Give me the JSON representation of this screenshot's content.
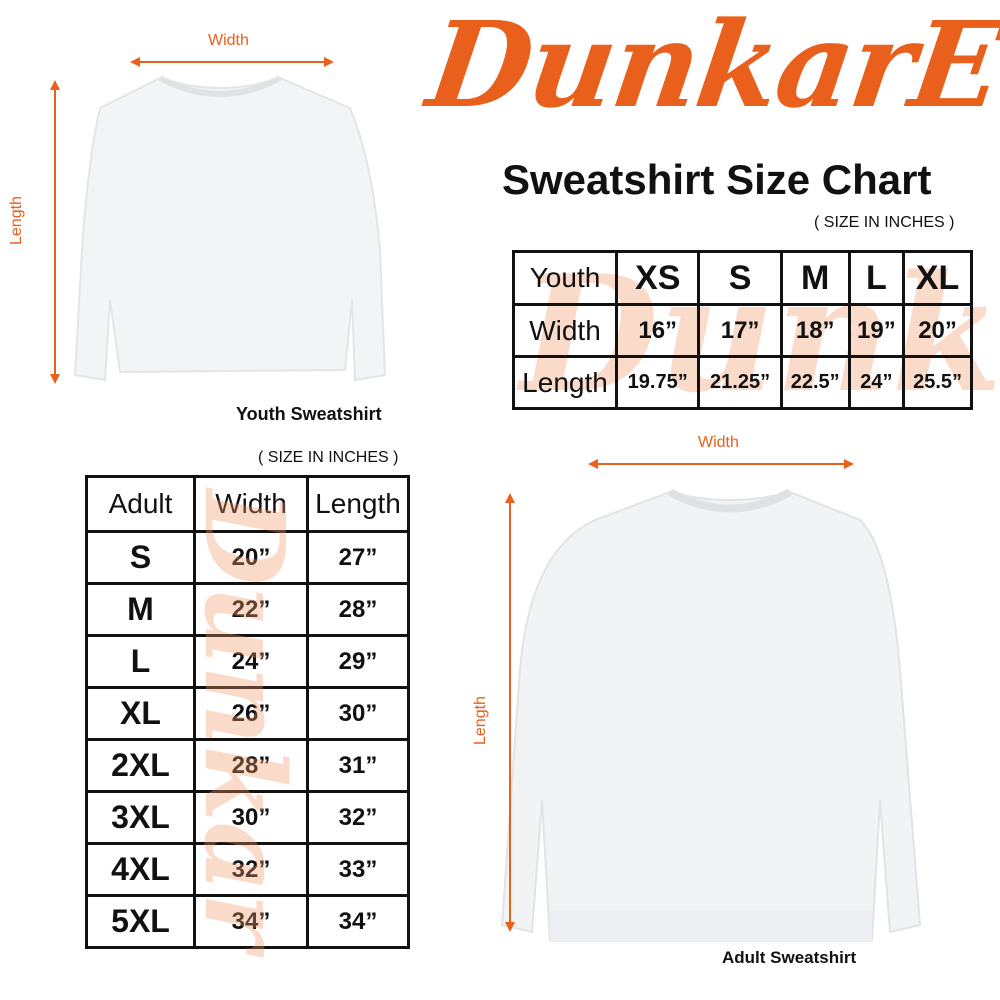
{
  "logo": {
    "text": "DunkarE",
    "color": "#e8601c"
  },
  "title": "Sweatshirt Size Chart",
  "units_note": "( SIZE IN INCHES )",
  "youth": {
    "caption": "Youth Sweatshirt",
    "width_label": "Width",
    "length_label": "Length",
    "table": {
      "header": [
        "Youth",
        "XS",
        "S",
        "M",
        "L",
        "XL"
      ],
      "rows": [
        [
          "Width",
          "16”",
          "17”",
          "18”",
          "19”",
          "20”"
        ],
        [
          "Length",
          "19.75”",
          "21.25”",
          "22.5”",
          "24”",
          "25.5”"
        ]
      ]
    }
  },
  "adult": {
    "caption": "Adult Sweatshirt",
    "width_label": "Width",
    "length_label": "Length",
    "units_note": "( SIZE IN INCHES )",
    "table": {
      "header": [
        "Adult",
        "Width",
        "Length"
      ],
      "rows": [
        [
          "S",
          "20”",
          "27”"
        ],
        [
          "M",
          "22”",
          "28”"
        ],
        [
          "L",
          "24”",
          "29”"
        ],
        [
          "XL",
          "26”",
          "30”"
        ],
        [
          "2XL",
          "28”",
          "31”"
        ],
        [
          "3XL",
          "30”",
          "32”"
        ],
        [
          "4XL",
          "32”",
          "33”"
        ],
        [
          "5XL",
          "34”",
          "34”"
        ]
      ]
    }
  },
  "colors": {
    "accent": "#e8601c",
    "shirt": "#f2f3f5"
  }
}
